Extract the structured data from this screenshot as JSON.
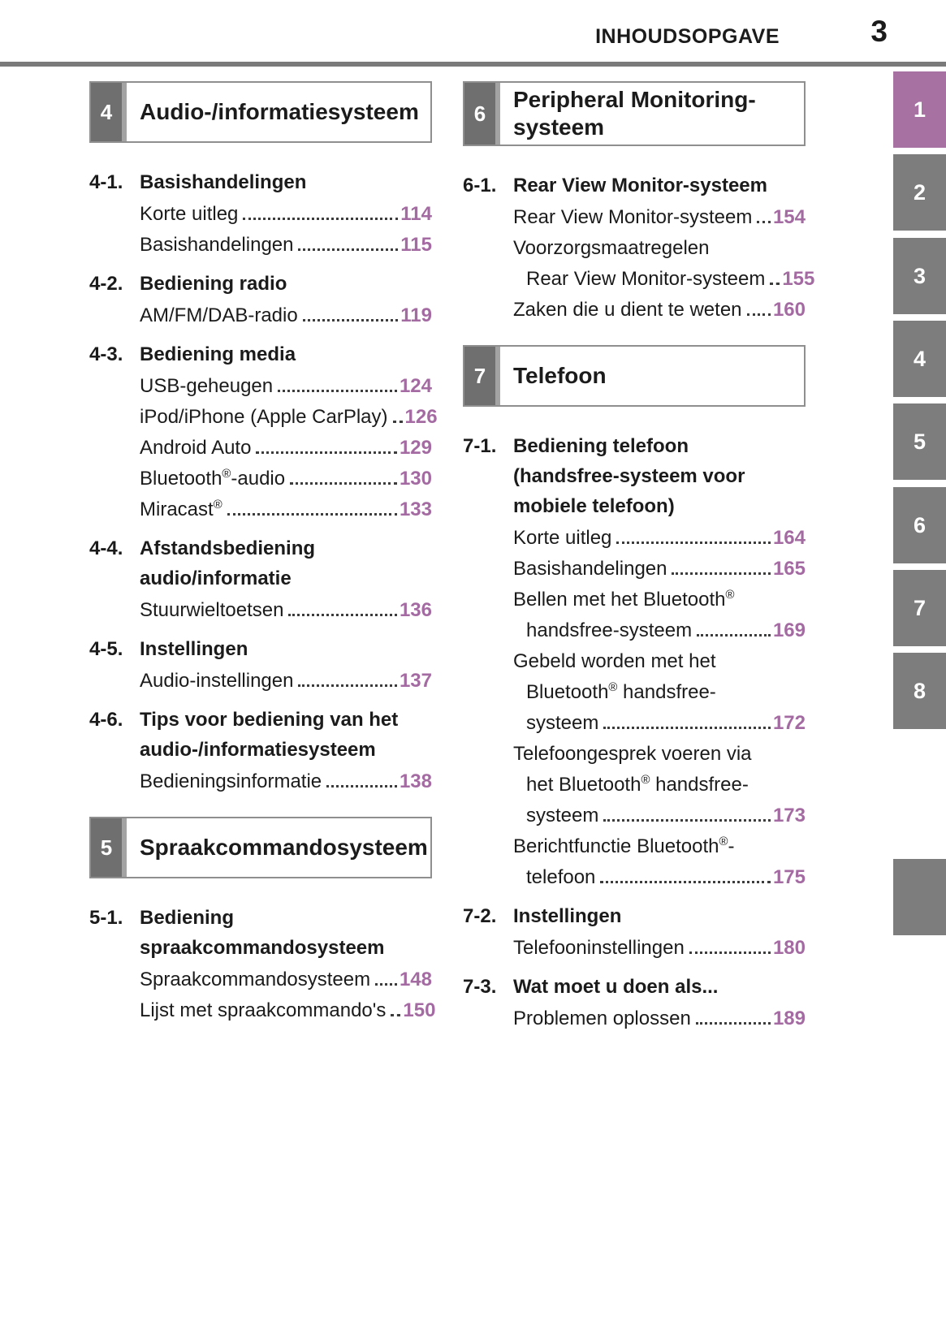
{
  "header": {
    "title": "INHOUDSOPGAVE",
    "page_number": "3"
  },
  "colors": {
    "accent_purple": "#a771a2",
    "page_ref_purple": "#a46ba2",
    "tab_gray": "#7d7d7d",
    "badge_gray": "#6f6f6f"
  },
  "columns": [
    {
      "side": "left",
      "blocks": [
        {
          "type": "section",
          "num": "4",
          "title": "Audio-/informatiesysteem"
        },
        {
          "type": "sub",
          "num": "4-1.",
          "lines": [
            "Basishandelingen"
          ]
        },
        {
          "type": "entry",
          "lines": [
            {
              "text": "Korte uitleg",
              "page": "114"
            }
          ]
        },
        {
          "type": "entry",
          "lines": [
            {
              "text": "Basishandelingen",
              "page": "115"
            }
          ]
        },
        {
          "type": "sub",
          "num": "4-2.",
          "lines": [
            "Bediening radio"
          ]
        },
        {
          "type": "entry",
          "lines": [
            {
              "text": "AM/FM/DAB-radio",
              "page": "119"
            }
          ]
        },
        {
          "type": "sub",
          "num": "4-3.",
          "lines": [
            "Bediening media"
          ]
        },
        {
          "type": "entry",
          "lines": [
            {
              "text": "USB-geheugen",
              "page": "124"
            }
          ]
        },
        {
          "type": "entry",
          "lines": [
            {
              "text": "iPod/iPhone (Apple CarPlay)",
              "page": "126"
            }
          ]
        },
        {
          "type": "entry",
          "lines": [
            {
              "text": "Android Auto",
              "page": "129"
            }
          ]
        },
        {
          "type": "entry",
          "lines": [
            {
              "text": "Bluetooth®-audio",
              "page": "130"
            }
          ]
        },
        {
          "type": "entry",
          "lines": [
            {
              "text": "Miracast®",
              "page": "133"
            }
          ]
        },
        {
          "type": "sub",
          "num": "4-4.",
          "lines": [
            "Afstandsbediening",
            "audio/informatie"
          ]
        },
        {
          "type": "entry",
          "lines": [
            {
              "text": "Stuurwieltoetsen",
              "page": "136"
            }
          ]
        },
        {
          "type": "sub",
          "num": "4-5.",
          "lines": [
            "Instellingen"
          ]
        },
        {
          "type": "entry",
          "lines": [
            {
              "text": "Audio-instellingen",
              "page": "137"
            }
          ]
        },
        {
          "type": "sub",
          "num": "4-6.",
          "lines": [
            "Tips voor bediening van het",
            "audio-/informatiesysteem"
          ]
        },
        {
          "type": "entry",
          "lines": [
            {
              "text": "Bedieningsinformatie",
              "page": "138"
            }
          ]
        },
        {
          "type": "section",
          "num": "5",
          "title": "Spraakcommandosysteem"
        },
        {
          "type": "sub",
          "num": "5-1.",
          "lines": [
            "Bediening",
            "spraakcommandosysteem"
          ]
        },
        {
          "type": "entry",
          "lines": [
            {
              "text": "Spraakcommandosysteem",
              "page": "148"
            }
          ]
        },
        {
          "type": "entry",
          "lines": [
            {
              "text": "Lijst met spraakcommando's",
              "page": "150"
            }
          ]
        }
      ]
    },
    {
      "side": "right",
      "blocks": [
        {
          "type": "section",
          "num": "6",
          "title": "Peripheral Monitoring-systeem"
        },
        {
          "type": "sub",
          "num": "6-1.",
          "lines": [
            "Rear View Monitor-systeem"
          ]
        },
        {
          "type": "entry",
          "lines": [
            {
              "text": "Rear View Monitor-systeem",
              "page": "154"
            }
          ]
        },
        {
          "type": "entry",
          "lines": [
            {
              "text": "Voorzorgsmaatregelen"
            },
            {
              "text": "Rear View Monitor-systeem",
              "page": "155",
              "indent": 1
            }
          ]
        },
        {
          "type": "entry",
          "lines": [
            {
              "text": "Zaken die u dient te weten",
              "page": "160"
            }
          ]
        },
        {
          "type": "section",
          "num": "7",
          "title": "Telefoon"
        },
        {
          "type": "sub",
          "num": "7-1.",
          "lines": [
            "Bediening telefoon",
            "(handsfree-systeem voor",
            "mobiele telefoon)"
          ]
        },
        {
          "type": "entry",
          "lines": [
            {
              "text": "Korte uitleg",
              "page": "164"
            }
          ]
        },
        {
          "type": "entry",
          "lines": [
            {
              "text": "Basishandelingen",
              "page": "165"
            }
          ]
        },
        {
          "type": "entry",
          "lines": [
            {
              "text": "Bellen met het Bluetooth®"
            },
            {
              "text": "handsfree-systeem",
              "page": "169",
              "indent": 1
            }
          ]
        },
        {
          "type": "entry",
          "lines": [
            {
              "text": "Gebeld worden met het"
            },
            {
              "text": "Bluetooth® handsfree-",
              "indent": 1
            },
            {
              "text": "systeem",
              "page": "172",
              "indent": 1
            }
          ]
        },
        {
          "type": "entry",
          "lines": [
            {
              "text": "Telefoongesprek voeren via"
            },
            {
              "text": "het Bluetooth® handsfree-",
              "indent": 1
            },
            {
              "text": "systeem",
              "page": "173",
              "indent": 1
            }
          ]
        },
        {
          "type": "entry",
          "lines": [
            {
              "text": "Berichtfunctie Bluetooth®-"
            },
            {
              "text": "telefoon",
              "page": "175",
              "indent": 1
            }
          ]
        },
        {
          "type": "sub",
          "num": "7-2.",
          "lines": [
            "Instellingen"
          ]
        },
        {
          "type": "entry",
          "lines": [
            {
              "text": "Telefooninstellingen",
              "page": "180"
            }
          ]
        },
        {
          "type": "sub",
          "num": "7-3.",
          "lines": [
            "Wat moet u doen als..."
          ]
        },
        {
          "type": "entry",
          "lines": [
            {
              "text": "Problemen oplossen",
              "page": "189"
            }
          ]
        }
      ]
    }
  ],
  "tabs": [
    {
      "label": "1",
      "active": true
    },
    {
      "label": "2"
    },
    {
      "label": "3"
    },
    {
      "label": "4"
    },
    {
      "label": "5"
    },
    {
      "label": "6"
    },
    {
      "label": "7"
    },
    {
      "label": "8"
    },
    {
      "label": ""
    }
  ]
}
